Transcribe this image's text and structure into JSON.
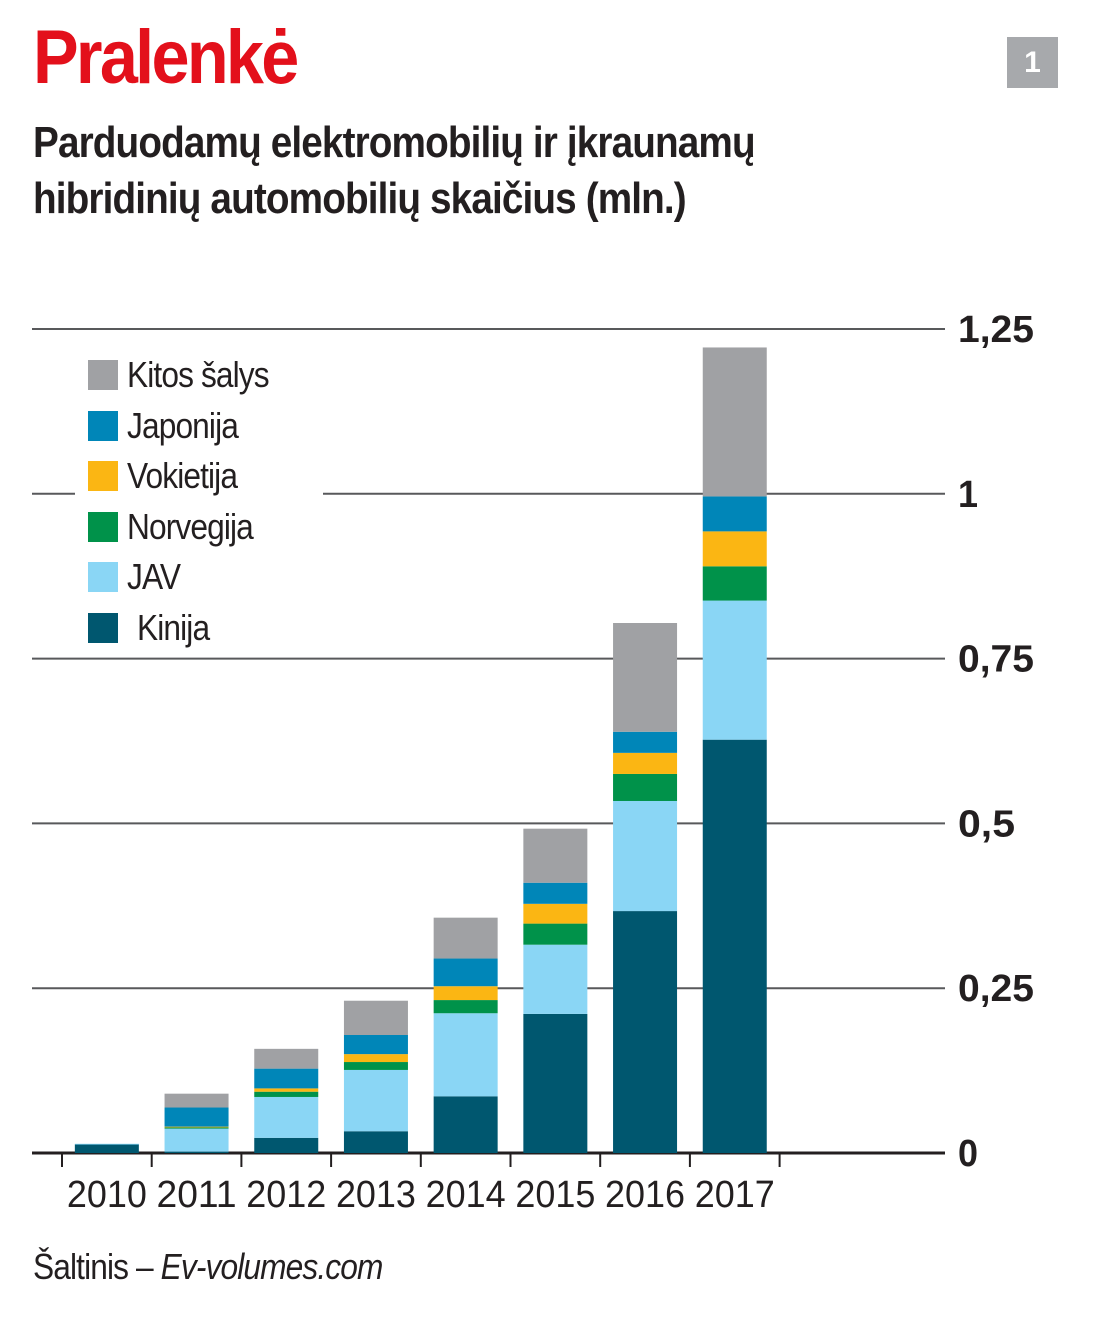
{
  "header": {
    "title": "Pralenkė",
    "badge": "1",
    "subtitle_line1": "Parduodamų elektromobilių ir įkraunamų",
    "subtitle_line2": "hibridinių automobilių skaičius (mln.)"
  },
  "source": {
    "label": "Šaltinis – ",
    "name": "Ev-volumes.com"
  },
  "chart_data": {
    "type": "bar",
    "stacked": true,
    "title": "Parduodamų elektromobilių ir įkraunamų hibridinių automobilių skaičius (mln.)",
    "xlabel": "",
    "ylabel": "mln.",
    "ylim": [
      0,
      1.25
    ],
    "yticks": [
      0,
      0.25,
      0.5,
      0.75,
      1,
      1.25
    ],
    "ytick_labels": [
      "0",
      "0,25",
      "0,5",
      "0,75",
      "1",
      "1,25"
    ],
    "grid": true,
    "legend_position": "top-left",
    "categories": [
      "2010",
      "2011",
      "2012",
      "2013",
      "2014",
      "2015",
      "2016",
      "2017"
    ],
    "series": [
      {
        "name": "Kinija",
        "color": "#00576f",
        "values": [
          0.013,
          0.002,
          0.023,
          0.033,
          0.086,
          0.211,
          0.367,
          0.627
        ]
      },
      {
        "name": "JAV",
        "color": "#8ad6f5",
        "values": [
          0.001,
          0.035,
          0.062,
          0.093,
          0.126,
          0.105,
          0.167,
          0.211
        ]
      },
      {
        "name": "Norvegija",
        "color": "#00924a",
        "values": [
          0,
          0.002,
          0.008,
          0.012,
          0.02,
          0.032,
          0.041,
          0.052
        ]
      },
      {
        "name": "Vokietija",
        "color": "#fbb613",
        "values": [
          0,
          0.001,
          0.005,
          0.012,
          0.021,
          0.03,
          0.032,
          0.053
        ]
      },
      {
        "name": "Japonija",
        "color": "#0086b8",
        "values": [
          0,
          0.029,
          0.03,
          0.029,
          0.042,
          0.032,
          0.032,
          0.053
        ]
      },
      {
        "name": "Kitos šalys",
        "color": "#a0a1a4",
        "values": [
          0,
          0.021,
          0.03,
          0.052,
          0.062,
          0.082,
          0.165,
          0.226
        ]
      }
    ],
    "legend_order": [
      "Kitos šalys",
      "Japonija",
      "Vokietija",
      "Norvegija",
      "JAV",
      "Kinija"
    ]
  }
}
